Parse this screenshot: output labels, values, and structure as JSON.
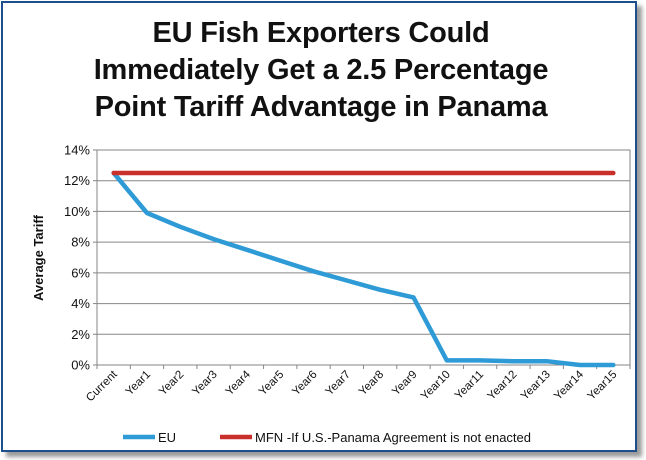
{
  "chart_data": {
    "type": "line",
    "title_lines": [
      "EU Fish Exporters Could",
      "Immediately Get a 2.5 Percentage",
      "Point Tariff Advantage in Panama"
    ],
    "xlabel": "",
    "ylabel": "Average Tariff",
    "categories": [
      "Current",
      "Year1",
      "Year2",
      "Year3",
      "Year4",
      "Year5",
      "Year6",
      "Year7",
      "Year8",
      "Year9",
      "Year10",
      "Year11",
      "Year12",
      "Year13",
      "Year14",
      "Year15"
    ],
    "y_ticks": [
      "0%",
      "2%",
      "4%",
      "6%",
      "8%",
      "10%",
      "12%",
      "14%"
    ],
    "ylim": [
      0,
      14
    ],
    "grid": true,
    "legend_position": "bottom",
    "series": [
      {
        "name": "EU",
        "color": "#2e9bd6",
        "values": [
          12.5,
          9.9,
          9.0,
          8.2,
          7.5,
          6.8,
          6.1,
          5.5,
          4.9,
          4.4,
          0.3,
          0.3,
          0.25,
          0.25,
          0.0,
          0.0
        ]
      },
      {
        "name": "MFN -If U.S.-Panama Agreement is not enacted",
        "color": "#c9302c",
        "values": [
          12.5,
          12.5,
          12.5,
          12.5,
          12.5,
          12.5,
          12.5,
          12.5,
          12.5,
          12.5,
          12.5,
          12.5,
          12.5,
          12.5,
          12.5,
          12.5
        ]
      }
    ]
  }
}
